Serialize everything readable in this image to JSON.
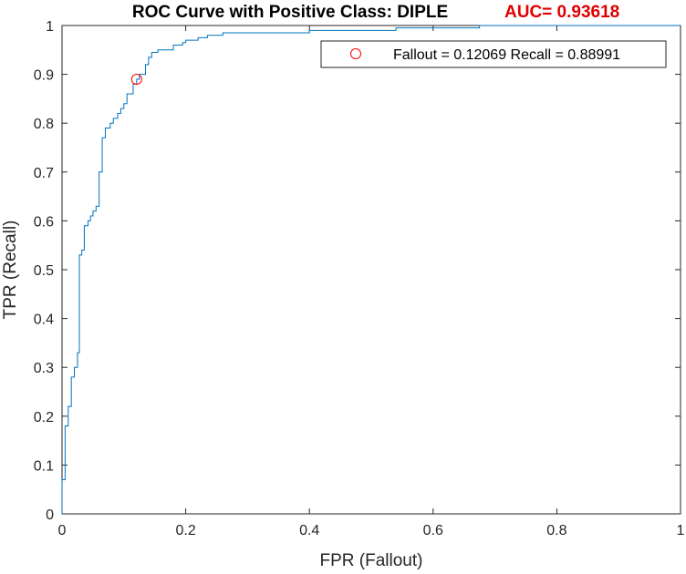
{
  "chart_data": {
    "type": "line",
    "title": "ROC Curve with Positive Class: DIPLE",
    "auc_label": "AUC= 0.93618",
    "xlabel": "FPR (Fallout)",
    "ylabel": "TPR (Recall)",
    "xlim": [
      0,
      1
    ],
    "ylim": [
      0,
      1
    ],
    "x_ticks": [
      "0",
      "0.2",
      "0.4",
      "0.6",
      "0.8",
      "1"
    ],
    "y_ticks": [
      "0",
      "0.1",
      "0.2",
      "0.3",
      "0.4",
      "0.5",
      "0.6",
      "0.7",
      "0.8",
      "0.9",
      "1"
    ],
    "grid": false,
    "legend_position": "top-right",
    "series": [
      {
        "color": "#0072BD",
        "x": [
          0,
          0,
          0.005,
          0.005,
          0.01,
          0.01,
          0.015,
          0.015,
          0.02,
          0.02,
          0.025,
          0.025,
          0.028,
          0.028,
          0.032,
          0.032,
          0.036,
          0.036,
          0.042,
          0.042,
          0.046,
          0.046,
          0.05,
          0.05,
          0.055,
          0.055,
          0.06,
          0.06,
          0.065,
          0.065,
          0.07,
          0.07,
          0.078,
          0.078,
          0.083,
          0.083,
          0.09,
          0.09,
          0.095,
          0.095,
          0.1,
          0.1,
          0.105,
          0.105,
          0.115,
          0.115,
          0.12069,
          0.12069,
          0.125,
          0.125,
          0.135,
          0.135,
          0.14,
          0.14,
          0.145,
          0.145,
          0.155,
          0.155,
          0.18,
          0.18,
          0.195,
          0.195,
          0.2,
          0.2,
          0.22,
          0.22,
          0.235,
          0.235,
          0.26,
          0.26,
          0.4,
          0.4,
          0.54,
          0.54,
          0.675,
          0.675,
          1
        ],
        "y": [
          0,
          0.07,
          0.07,
          0.18,
          0.18,
          0.22,
          0.22,
          0.28,
          0.28,
          0.3,
          0.3,
          0.33,
          0.33,
          0.53,
          0.53,
          0.54,
          0.54,
          0.59,
          0.59,
          0.6,
          0.6,
          0.61,
          0.61,
          0.62,
          0.62,
          0.63,
          0.63,
          0.7,
          0.7,
          0.77,
          0.77,
          0.79,
          0.79,
          0.8,
          0.8,
          0.81,
          0.81,
          0.82,
          0.82,
          0.83,
          0.83,
          0.84,
          0.84,
          0.86,
          0.86,
          0.88,
          0.88,
          0.89,
          0.89,
          0.9,
          0.9,
          0.92,
          0.92,
          0.935,
          0.935,
          0.945,
          0.945,
          0.95,
          0.95,
          0.96,
          0.96,
          0.965,
          0.965,
          0.97,
          0.97,
          0.975,
          0.975,
          0.98,
          0.98,
          0.985,
          0.985,
          0.99,
          0.99,
          0.995,
          0.995,
          1,
          1
        ]
      }
    ],
    "marker": {
      "x": 0.12069,
      "y": 0.88991,
      "color": "#FF0000",
      "legend_label": "Fallout = 0.12069 Recall = 0.88991"
    },
    "auc_color": "#E00000"
  }
}
